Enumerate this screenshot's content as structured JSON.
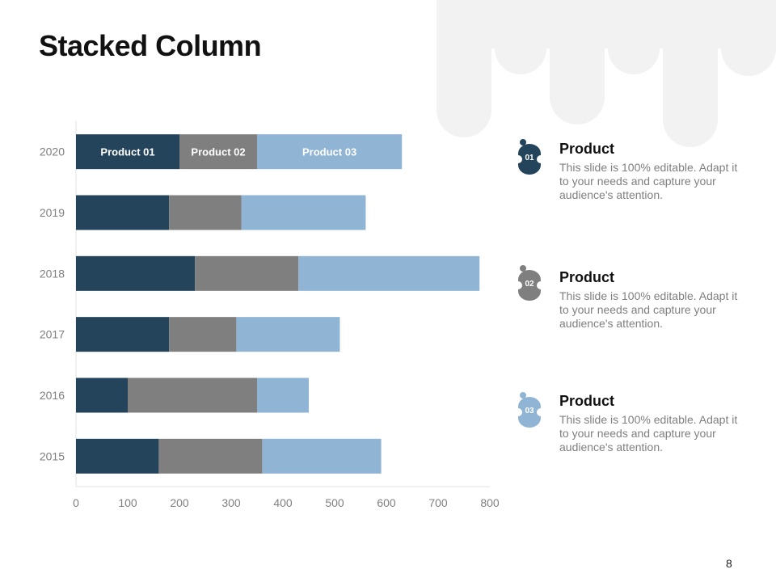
{
  "slide": {
    "title": "Stacked Column",
    "page_number": "8"
  },
  "chart_data": {
    "type": "bar",
    "orientation": "horizontal",
    "stacked": true,
    "categories": [
      "2015",
      "2016",
      "2017",
      "2018",
      "2019",
      "2020"
    ],
    "series": [
      {
        "name": "Product 01",
        "color": "#24445c",
        "values": [
          160,
          100,
          180,
          230,
          180,
          200
        ]
      },
      {
        "name": "Product 02",
        "color": "#7f7f7f",
        "values": [
          200,
          250,
          130,
          200,
          140,
          150
        ]
      },
      {
        "name": "Product 03",
        "color": "#8fb4d4",
        "values": [
          230,
          100,
          200,
          350,
          240,
          280
        ]
      }
    ],
    "xlim": [
      0,
      800
    ],
    "xticks": [
      "0",
      "100",
      "200",
      "300",
      "400",
      "500",
      "600",
      "700",
      "800"
    ],
    "grid": false,
    "legend": "inside top bar"
  },
  "items": [
    {
      "badge": "01",
      "title": "Product",
      "text": "This slide is 100% editable. Adapt it to your needs and capture your audience's attention.",
      "color": "#24445c"
    },
    {
      "badge": "02",
      "title": "Product",
      "text": "This slide is 100% editable. Adapt it to your needs and capture your audience's attention.",
      "color": "#7f7f7f"
    },
    {
      "badge": "03",
      "title": "Product",
      "text": "This slide is 100% editable. Adapt it to your needs and capture your audience's attention.",
      "color": "#8fb4d4"
    }
  ]
}
